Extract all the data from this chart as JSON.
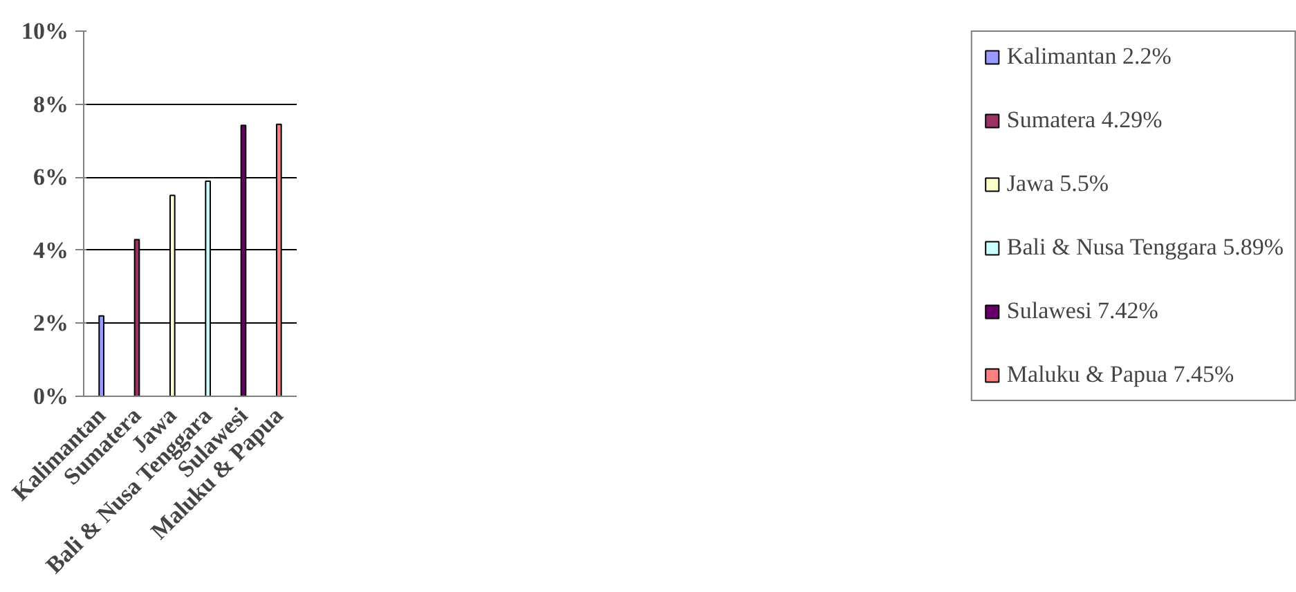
{
  "chart_data": {
    "type": "bar",
    "categories": [
      "Kalimantan",
      "Sumatera",
      "Jawa",
      "Bali & Nusa Tenggara",
      "Sulawesi",
      "Maluku & Papua"
    ],
    "series": [
      {
        "name": "Kalimantan 2.2%",
        "color": "#9999ff",
        "values": [
          2.2,
          null,
          null,
          null,
          null,
          null
        ]
      },
      {
        "name": "Sumatera 4.29%",
        "color": "#993366",
        "values": [
          null,
          4.29,
          null,
          null,
          null,
          null
        ]
      },
      {
        "name": "Jawa 5.5%",
        "color": "#ffffcc",
        "values": [
          null,
          null,
          5.5,
          null,
          null,
          null
        ]
      },
      {
        "name": "Bali & Nusa Tenggara 5.89%",
        "color": "#ccffff",
        "values": [
          null,
          null,
          null,
          5.89,
          null,
          null
        ]
      },
      {
        "name": "Sulawesi 7.42%",
        "color": "#660066",
        "values": [
          null,
          null,
          null,
          null,
          7.42,
          null
        ]
      },
      {
        "name": "Maluku & Papua 7.45%",
        "color": "#ff8080",
        "values": [
          null,
          null,
          null,
          null,
          null,
          7.45
        ]
      }
    ],
    "ylim": [
      0,
      10
    ],
    "yticks": [
      {
        "value": 0,
        "label": "0%"
      },
      {
        "value": 2,
        "label": "2%"
      },
      {
        "value": 4,
        "label": "4%"
      },
      {
        "value": 6,
        "label": "6%"
      },
      {
        "value": 8,
        "label": "8%"
      },
      {
        "value": 10,
        "label": "10%"
      }
    ],
    "grid": "y",
    "legend": "right"
  }
}
